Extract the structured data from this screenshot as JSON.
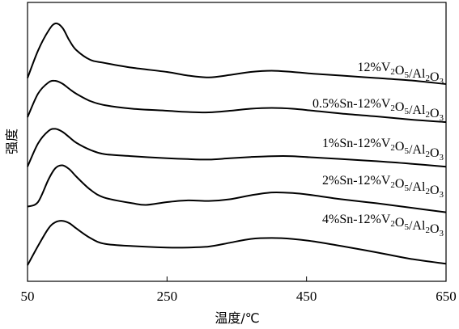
{
  "chart_data": {
    "type": "line",
    "xlabel": "温度/℃",
    "ylabel": "强度",
    "xlim": [
      50,
      650
    ],
    "xticks": [
      "50",
      "250",
      "450",
      "650"
    ],
    "xtick_values": [
      50,
      250,
      450,
      650
    ],
    "yticks": [],
    "grid": false,
    "legend": "labels placed above each curve at right",
    "series": [
      {
        "name": "12%V2O5/Al2O3",
        "label_parts": [
          {
            "t": "12%V"
          },
          {
            "t": "2",
            "sub": true
          },
          {
            "t": "O"
          },
          {
            "t": "5",
            "sub": true
          },
          {
            "t": "/Al"
          },
          {
            "t": "2",
            "sub": true
          },
          {
            "t": "O"
          },
          {
            "t": "3",
            "sub": true
          }
        ],
        "x": [
          50,
          65,
          80,
          90,
          100,
          110,
          120,
          140,
          160,
          200,
          250,
          280,
          310,
          340,
          370,
          400,
          430,
          460,
          500,
          550,
          600,
          650
        ],
        "y": [
          0.1,
          0.55,
          0.88,
          1.0,
          0.93,
          0.72,
          0.56,
          0.4,
          0.35,
          0.27,
          0.2,
          0.14,
          0.11,
          0.15,
          0.2,
          0.22,
          0.2,
          0.17,
          0.14,
          0.1,
          0.06,
          0.0
        ]
      },
      {
        "name": "0.5%Sn-12%V2O5/Al2O3",
        "label_parts": [
          {
            "t": "0.5%Sn-12%V"
          },
          {
            "t": "2",
            "sub": true
          },
          {
            "t": "O"
          },
          {
            "t": "5",
            "sub": true
          },
          {
            "t": "/Al"
          },
          {
            "t": "2",
            "sub": true
          },
          {
            "t": "O"
          },
          {
            "t": "3",
            "sub": true
          }
        ],
        "x": [
          50,
          65,
          80,
          90,
          100,
          110,
          120,
          140,
          160,
          200,
          250,
          280,
          310,
          340,
          370,
          400,
          430,
          460,
          500,
          550,
          600,
          650
        ],
        "y": [
          0.22,
          0.8,
          1.08,
          1.12,
          1.05,
          0.92,
          0.8,
          0.62,
          0.52,
          0.43,
          0.38,
          0.35,
          0.34,
          0.38,
          0.43,
          0.45,
          0.43,
          0.38,
          0.31,
          0.24,
          0.16,
          0.1
        ]
      },
      {
        "name": "1%Sn-12%V2O5/Al2O3",
        "label_parts": [
          {
            "t": "1%Sn-12%V"
          },
          {
            "t": "2",
            "sub": true
          },
          {
            "t": "O"
          },
          {
            "t": "5",
            "sub": true
          },
          {
            "t": "/Al"
          },
          {
            "t": "2",
            "sub": true
          },
          {
            "t": "O"
          },
          {
            "t": "3",
            "sub": true
          }
        ],
        "x": [
          50,
          65,
          80,
          90,
          100,
          110,
          120,
          140,
          160,
          200,
          250,
          280,
          310,
          340,
          370,
          400,
          430,
          460,
          500,
          550,
          600,
          650
        ],
        "y": [
          0.15,
          0.7,
          1.0,
          1.05,
          0.98,
          0.85,
          0.72,
          0.55,
          0.45,
          0.4,
          0.35,
          0.33,
          0.32,
          0.35,
          0.38,
          0.4,
          0.4,
          0.37,
          0.33,
          0.28,
          0.22,
          0.15
        ]
      },
      {
        "name": "2%Sn-12%V2O5/Al2O3",
        "label_parts": [
          {
            "t": "2%Sn-12%V"
          },
          {
            "t": "2",
            "sub": true
          },
          {
            "t": "O"
          },
          {
            "t": "5",
            "sub": true
          },
          {
            "t": "/Al"
          },
          {
            "t": "2",
            "sub": true
          },
          {
            "t": "O"
          },
          {
            "t": "3",
            "sub": true
          }
        ],
        "x": [
          50,
          65,
          80,
          90,
          100,
          110,
          120,
          140,
          160,
          200,
          220,
          250,
          280,
          310,
          340,
          370,
          400,
          430,
          460,
          500,
          550,
          600,
          650
        ],
        "y": [
          0.32,
          0.4,
          0.8,
          1.0,
          1.05,
          0.98,
          0.85,
          0.62,
          0.48,
          0.38,
          0.35,
          0.4,
          0.43,
          0.42,
          0.45,
          0.52,
          0.57,
          0.56,
          0.52,
          0.45,
          0.38,
          0.3,
          0.22
        ]
      },
      {
        "name": "4%Sn-12%V2O5/Al2O3",
        "label_parts": [
          {
            "t": "4%Sn-12%V"
          },
          {
            "t": "2",
            "sub": true
          },
          {
            "t": "O"
          },
          {
            "t": "5",
            "sub": true
          },
          {
            "t": "/Al"
          },
          {
            "t": "2",
            "sub": true
          },
          {
            "t": "O"
          },
          {
            "t": "3",
            "sub": true
          }
        ],
        "x": [
          50,
          65,
          80,
          90,
          100,
          110,
          120,
          140,
          160,
          200,
          250,
          280,
          310,
          340,
          370,
          400,
          430,
          460,
          500,
          550,
          600,
          650
        ],
        "y": [
          0.05,
          0.45,
          0.82,
          0.95,
          0.98,
          0.93,
          0.82,
          0.62,
          0.5,
          0.45,
          0.42,
          0.42,
          0.44,
          0.52,
          0.6,
          0.62,
          0.6,
          0.55,
          0.45,
          0.32,
          0.18,
          0.08
        ]
      }
    ]
  }
}
